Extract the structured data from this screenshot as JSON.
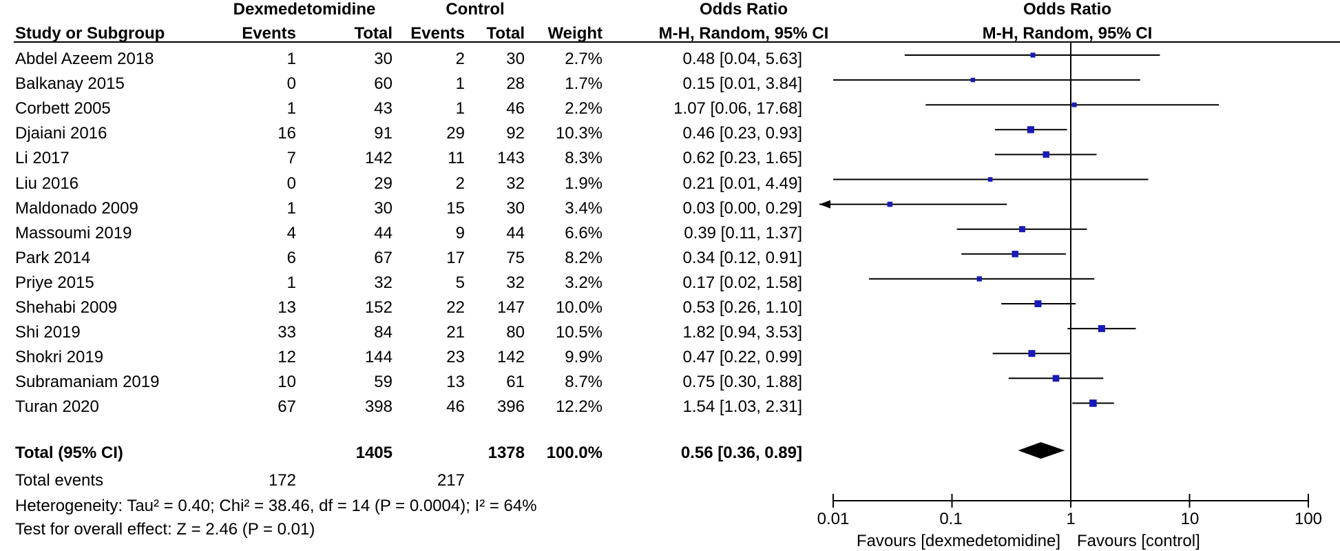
{
  "headers": {
    "dex_group": "Dexmedetomidine",
    "control_group": "Control",
    "or_group_table": "Odds Ratio",
    "or_group_plot": "Odds Ratio",
    "study_col": "Study or Subgroup",
    "dex_events_col": "Events",
    "dex_total_col": "Total",
    "ctrl_events_col": "Events",
    "ctrl_total_col": "Total",
    "weight_col": "Weight",
    "or_col_table": "M-H, Random, 95% CI",
    "or_col_plot": "M-H, Random, 95% CI"
  },
  "studies": [
    {
      "name": "Abdel Azeem 2018",
      "dex_events": "1",
      "dex_total": "30",
      "ctrl_events": "2",
      "ctrl_total": "30",
      "weight": "2.7%",
      "ci_text": "0.48 [0.04, 5.63]"
    },
    {
      "name": "Balkanay 2015",
      "dex_events": "0",
      "dex_total": "60",
      "ctrl_events": "1",
      "ctrl_total": "28",
      "weight": "1.7%",
      "ci_text": "0.15 [0.01, 3.84]"
    },
    {
      "name": "Corbett 2005",
      "dex_events": "1",
      "dex_total": "43",
      "ctrl_events": "1",
      "ctrl_total": "46",
      "weight": "2.2%",
      "ci_text": "1.07 [0.06, 17.68]"
    },
    {
      "name": "Djaiani 2016",
      "dex_events": "16",
      "dex_total": "91",
      "ctrl_events": "29",
      "ctrl_total": "92",
      "weight": "10.3%",
      "ci_text": "0.46 [0.23, 0.93]"
    },
    {
      "name": "Li 2017",
      "dex_events": "7",
      "dex_total": "142",
      "ctrl_events": "11",
      "ctrl_total": "143",
      "weight": "8.3%",
      "ci_text": "0.62 [0.23, 1.65]"
    },
    {
      "name": "Liu 2016",
      "dex_events": "0",
      "dex_total": "29",
      "ctrl_events": "2",
      "ctrl_total": "32",
      "weight": "1.9%",
      "ci_text": "0.21 [0.01, 4.49]"
    },
    {
      "name": "Maldonado 2009",
      "dex_events": "1",
      "dex_total": "30",
      "ctrl_events": "15",
      "ctrl_total": "30",
      "weight": "3.4%",
      "ci_text": "0.03 [0.00, 0.29]"
    },
    {
      "name": "Massoumi 2019",
      "dex_events": "4",
      "dex_total": "44",
      "ctrl_events": "9",
      "ctrl_total": "44",
      "weight": "6.6%",
      "ci_text": "0.39 [0.11, 1.37]"
    },
    {
      "name": "Park 2014",
      "dex_events": "6",
      "dex_total": "67",
      "ctrl_events": "17",
      "ctrl_total": "75",
      "weight": "8.2%",
      "ci_text": "0.34 [0.12, 0.91]"
    },
    {
      "name": "Priye 2015",
      "dex_events": "1",
      "dex_total": "32",
      "ctrl_events": "5",
      "ctrl_total": "32",
      "weight": "3.2%",
      "ci_text": "0.17 [0.02, 1.58]"
    },
    {
      "name": "Shehabi 2009",
      "dex_events": "13",
      "dex_total": "152",
      "ctrl_events": "22",
      "ctrl_total": "147",
      "weight": "10.0%",
      "ci_text": "0.53 [0.26, 1.10]"
    },
    {
      "name": "Shi 2019",
      "dex_events": "33",
      "dex_total": "84",
      "ctrl_events": "21",
      "ctrl_total": "80",
      "weight": "10.5%",
      "ci_text": "1.82 [0.94, 3.53]"
    },
    {
      "name": "Shokri 2019",
      "dex_events": "12",
      "dex_total": "144",
      "ctrl_events": "23",
      "ctrl_total": "142",
      "weight": "9.9%",
      "ci_text": "0.47 [0.22, 0.99]"
    },
    {
      "name": "Subramaniam 2019",
      "dex_events": "10",
      "dex_total": "59",
      "ctrl_events": "13",
      "ctrl_total": "61",
      "weight": "8.7%",
      "ci_text": "0.75 [0.30, 1.88]"
    },
    {
      "name": "Turan 2020",
      "dex_events": "67",
      "dex_total": "398",
      "ctrl_events": "46",
      "ctrl_total": "396",
      "weight": "12.2%",
      "ci_text": "1.54 [1.03, 2.31]"
    }
  ],
  "total": {
    "label": "Total (95% CI)",
    "dex_total": "1405",
    "ctrl_total": "1378",
    "weight": "100.0%",
    "ci_text": "0.56 [0.36, 0.89]"
  },
  "total_events": {
    "label": "Total events",
    "dex": "172",
    "ctrl": "217"
  },
  "heterogeneity": "Heterogeneity: Tau² = 0.40; Chi² = 38.46, df = 14 (P = 0.0004); I² = 64%",
  "overall_effect": "Test for overall effect: Z = 2.46 (P = 0.01)",
  "axis": {
    "ticks": [
      "0.01",
      "0.1",
      "1",
      "10",
      "100"
    ],
    "favours_left": "Favours [dexmedetomidine]",
    "favours_right": "Favours [control]"
  },
  "colors": {
    "marker": "#1a1ab8",
    "line": "#000000",
    "diamond": "#000000"
  },
  "chart_data": {
    "type": "forest",
    "scale": "log",
    "xlim": [
      0.01,
      100
    ],
    "reference_line": 1,
    "xlabel_ticks": [
      0.01,
      0.1,
      1,
      10,
      100
    ],
    "points": [
      {
        "study": "Abdel Azeem 2018",
        "or": 0.48,
        "lo": 0.04,
        "hi": 5.63,
        "weight": 2.7
      },
      {
        "study": "Balkanay 2015",
        "or": 0.15,
        "lo": 0.01,
        "hi": 3.84,
        "weight": 1.7
      },
      {
        "study": "Corbett 2005",
        "or": 1.07,
        "lo": 0.06,
        "hi": 17.68,
        "weight": 2.2
      },
      {
        "study": "Djaiani 2016",
        "or": 0.46,
        "lo": 0.23,
        "hi": 0.93,
        "weight": 10.3
      },
      {
        "study": "Li 2017",
        "or": 0.62,
        "lo": 0.23,
        "hi": 1.65,
        "weight": 8.3
      },
      {
        "study": "Liu 2016",
        "or": 0.21,
        "lo": 0.01,
        "hi": 4.49,
        "weight": 1.9
      },
      {
        "study": "Maldonado 2009",
        "or": 0.03,
        "lo": 0.001,
        "hi": 0.29,
        "weight": 3.4
      },
      {
        "study": "Massoumi 2019",
        "or": 0.39,
        "lo": 0.11,
        "hi": 1.37,
        "weight": 6.6
      },
      {
        "study": "Park 2014",
        "or": 0.34,
        "lo": 0.12,
        "hi": 0.91,
        "weight": 8.2
      },
      {
        "study": "Priye 2015",
        "or": 0.17,
        "lo": 0.02,
        "hi": 1.58,
        "weight": 3.2
      },
      {
        "study": "Shehabi 2009",
        "or": 0.53,
        "lo": 0.26,
        "hi": 1.1,
        "weight": 10.0
      },
      {
        "study": "Shi 2019",
        "or": 1.82,
        "lo": 0.94,
        "hi": 3.53,
        "weight": 10.5
      },
      {
        "study": "Shokri 2019",
        "or": 0.47,
        "lo": 0.22,
        "hi": 0.99,
        "weight": 9.9
      },
      {
        "study": "Subramaniam 2019",
        "or": 0.75,
        "lo": 0.3,
        "hi": 1.88,
        "weight": 8.7
      },
      {
        "study": "Turan 2020",
        "or": 1.54,
        "lo": 1.03,
        "hi": 2.31,
        "weight": 12.2
      }
    ],
    "pooled": {
      "or": 0.56,
      "lo": 0.36,
      "hi": 0.89
    }
  }
}
